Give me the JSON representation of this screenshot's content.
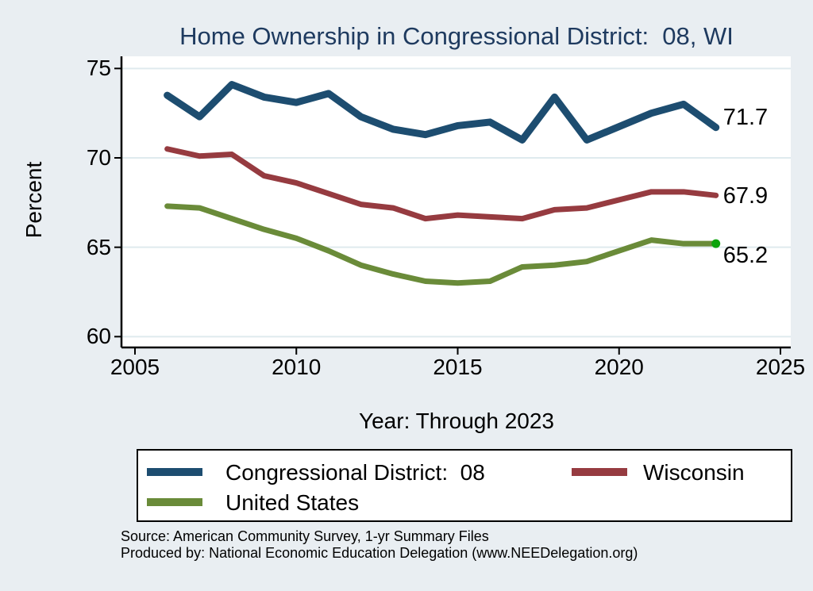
{
  "title": "Home Ownership in Congressional District:  08, WI",
  "chart_data": {
    "type": "line",
    "title": "Home Ownership in Congressional District:  08, WI",
    "xlabel": "Year: Through 2023",
    "ylabel": "Percent",
    "xlim": [
      2005,
      2025
    ],
    "ylim": [
      60,
      75
    ],
    "x_ticks": [
      2005,
      2010,
      2015,
      2020,
      2025
    ],
    "y_ticks": [
      60,
      65,
      70,
      75
    ],
    "grid": true,
    "legend_position": "bottom",
    "missing_years": [
      2020
    ],
    "series": [
      {
        "name": "Congressional District:  08",
        "color": "#1d4d70",
        "line_width": 9,
        "end_label": "71.7",
        "points": [
          [
            2006,
            73.5
          ],
          [
            2007,
            72.3
          ],
          [
            2008,
            74.1
          ],
          [
            2009,
            73.4
          ],
          [
            2010,
            73.1
          ],
          [
            2011,
            73.6
          ],
          [
            2012,
            72.3
          ],
          [
            2013,
            71.6
          ],
          [
            2014,
            71.3
          ],
          [
            2015,
            71.8
          ],
          [
            2016,
            72.0
          ],
          [
            2017,
            71.0
          ],
          [
            2018,
            73.4
          ],
          [
            2019,
            71.0
          ],
          [
            2021,
            72.5
          ],
          [
            2022,
            73.0
          ],
          [
            2023,
            71.7
          ]
        ]
      },
      {
        "name": "Wisconsin",
        "color": "#963b40",
        "line_width": 7,
        "end_label": "67.9",
        "points": [
          [
            2006,
            70.5
          ],
          [
            2007,
            70.1
          ],
          [
            2008,
            70.2
          ],
          [
            2009,
            69.0
          ],
          [
            2010,
            68.6
          ],
          [
            2011,
            68.0
          ],
          [
            2012,
            67.4
          ],
          [
            2013,
            67.2
          ],
          [
            2014,
            66.6
          ],
          [
            2015,
            66.8
          ],
          [
            2016,
            66.7
          ],
          [
            2017,
            66.6
          ],
          [
            2018,
            67.1
          ],
          [
            2019,
            67.2
          ],
          [
            2021,
            68.1
          ],
          [
            2022,
            68.1
          ],
          [
            2023,
            67.9
          ]
        ]
      },
      {
        "name": "United States",
        "color": "#6a8b39",
        "line_width": 7,
        "end_label": "65.2",
        "end_marker": true,
        "marker_color": "#0ba30b",
        "points": [
          [
            2006,
            67.3
          ],
          [
            2007,
            67.2
          ],
          [
            2008,
            66.6
          ],
          [
            2009,
            66.0
          ],
          [
            2010,
            65.5
          ],
          [
            2011,
            64.8
          ],
          [
            2012,
            64.0
          ],
          [
            2013,
            63.5
          ],
          [
            2014,
            63.1
          ],
          [
            2015,
            63.0
          ],
          [
            2016,
            63.1
          ],
          [
            2017,
            63.9
          ],
          [
            2018,
            64.0
          ],
          [
            2019,
            64.2
          ],
          [
            2021,
            65.4
          ],
          [
            2022,
            65.2
          ],
          [
            2023,
            65.2
          ]
        ]
      }
    ]
  },
  "legend": {
    "items": [
      {
        "label": "Congressional District:  08"
      },
      {
        "label": "Wisconsin"
      },
      {
        "label": "United States"
      }
    ]
  },
  "footer": {
    "line1": "Source: American Community Survey, 1-yr Summary Files",
    "line2": "Produced by: National Economic Education Delegation (www.NEEDelegation.org)"
  },
  "colors": {
    "background": "#e9eef2",
    "plot_bg": "#ffffff",
    "grid": "#dfeaee",
    "axis": "#000000",
    "title": "#1e3a5f"
  }
}
